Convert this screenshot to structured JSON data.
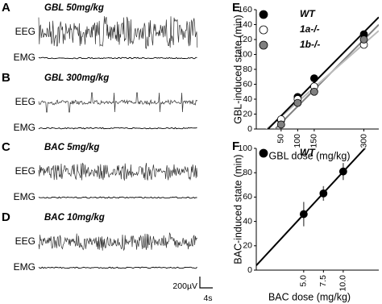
{
  "panels": [
    {
      "letter": "A",
      "title": "GBL 50mg/kg",
      "eeg": "EEG",
      "emg": "EMG"
    },
    {
      "letter": "B",
      "title": "GBL 300mg/kg",
      "eeg": "EEG",
      "emg": "EMG"
    },
    {
      "letter": "C",
      "title": "BAC 5mg/kg",
      "eeg": "EEG",
      "emg": "EMG"
    },
    {
      "letter": "D",
      "title": "BAC 10mg/kg",
      "eeg": "EEG",
      "emg": "EMG"
    }
  ],
  "scale_bar": {
    "amplitude": "200µV",
    "time": "4s"
  },
  "chart_data": [
    {
      "type": "scatter",
      "letter": "E",
      "xlabel": "GBL dose (mg/kg)",
      "ylabel": "GBL-induced state (min)",
      "x": [
        50,
        100,
        150,
        300
      ],
      "series": [
        {
          "name": "WT",
          "color": "#000000",
          "values": [
            12,
            43,
            68,
            127
          ]
        },
        {
          "name": "1a-/-",
          "color": "#ffffff",
          "values": [
            13,
            40,
            57,
            113
          ]
        },
        {
          "name": "1b-/-",
          "color": "#808080",
          "values": [
            6,
            35,
            50,
            120
          ]
        }
      ],
      "xlim": [
        -25,
        345
      ],
      "xticks": [
        50,
        100,
        150,
        300
      ],
      "ylim": [
        0,
        160
      ],
      "yticks": [
        0,
        20,
        40,
        60,
        80,
        100,
        120,
        140,
        160
      ]
    },
    {
      "type": "scatter",
      "letter": "F",
      "xlabel": "BAC dose (mg/kg)",
      "ylabel": "BAC-induced state (min)",
      "x": [
        5,
        7.5,
        10
      ],
      "series": [
        {
          "name": "WT",
          "color": "#000000",
          "values": [
            46,
            63,
            81
          ],
          "errors": [
            10,
            6,
            7
          ]
        }
      ],
      "xlim": [
        -1,
        14.5
      ],
      "xticks": [
        {
          "value": 5,
          "label": "5.0"
        },
        7.5,
        {
          "value": 10,
          "label": "10.0"
        }
      ],
      "ylim": [
        0,
        100
      ],
      "yticks": [
        0,
        20,
        40,
        60,
        80,
        100
      ]
    }
  ]
}
